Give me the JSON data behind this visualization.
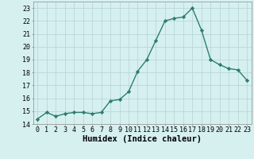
{
  "x": [
    0,
    1,
    2,
    3,
    4,
    5,
    6,
    7,
    8,
    9,
    10,
    11,
    12,
    13,
    14,
    15,
    16,
    17,
    18,
    19,
    20,
    21,
    22,
    23
  ],
  "y": [
    14.4,
    14.9,
    14.6,
    14.8,
    14.9,
    14.9,
    14.8,
    14.9,
    15.8,
    15.9,
    16.5,
    18.1,
    19.0,
    20.5,
    22.0,
    22.2,
    22.3,
    23.0,
    21.3,
    19.0,
    18.6,
    18.3,
    18.2,
    17.4
  ],
  "line_color": "#2e7d6e",
  "marker": "D",
  "marker_size": 2.2,
  "background_color": "#d6f0f0",
  "grid_color": "#b8d8d8",
  "xlabel": "Humidex (Indice chaleur)",
  "ylim": [
    14,
    23.5
  ],
  "xlim": [
    -0.5,
    23.5
  ],
  "yticks": [
    14,
    15,
    16,
    17,
    18,
    19,
    20,
    21,
    22,
    23
  ],
  "xticks": [
    0,
    1,
    2,
    3,
    4,
    5,
    6,
    7,
    8,
    9,
    10,
    11,
    12,
    13,
    14,
    15,
    16,
    17,
    18,
    19,
    20,
    21,
    22,
    23
  ],
  "tick_fontsize": 6,
  "xlabel_fontsize": 7.5,
  "line_width": 1.0
}
